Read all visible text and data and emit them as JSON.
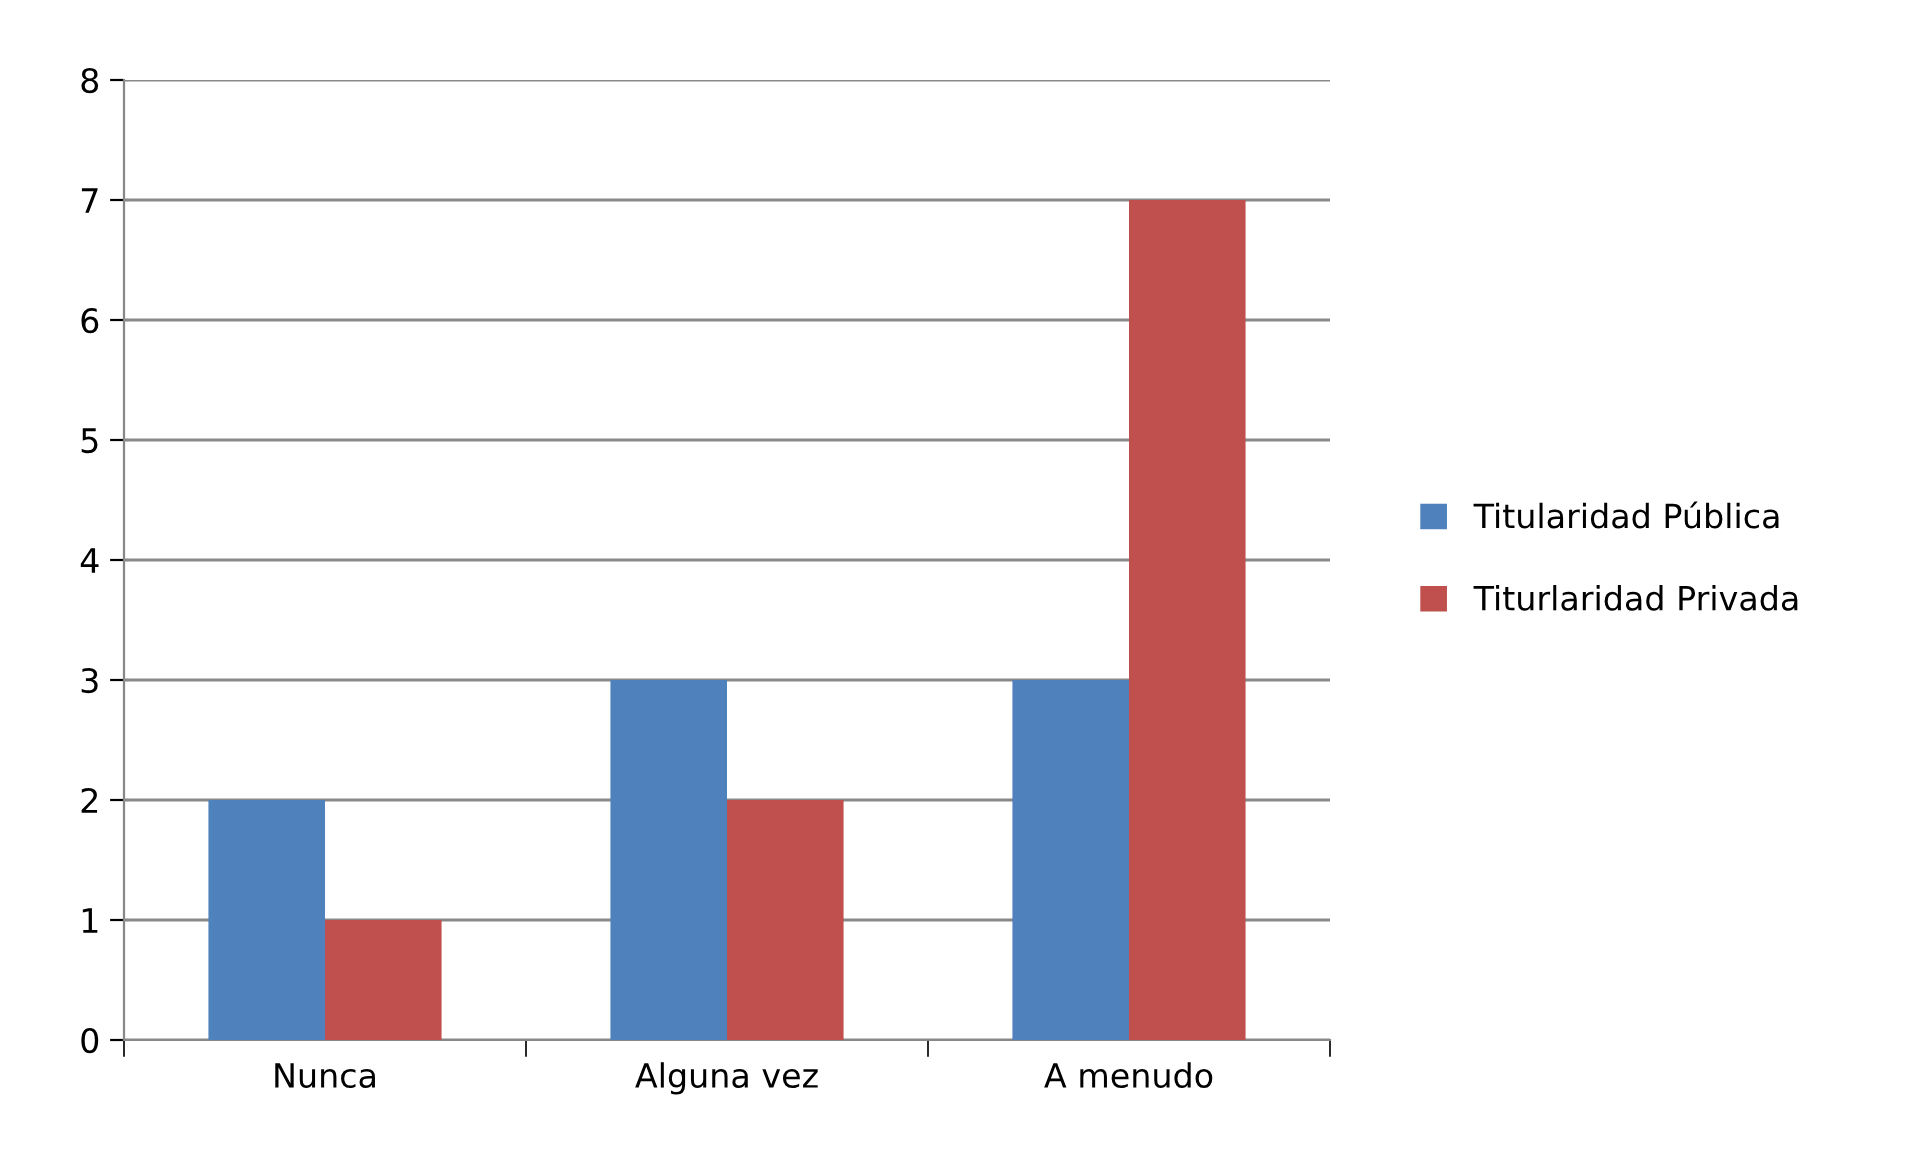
{
  "chart_data": {
    "type": "bar",
    "categories": [
      "Nunca",
      "Alguna vez",
      "A menudo"
    ],
    "series": [
      {
        "name": "Titularidad Pública",
        "color": "#4f81bd",
        "values": [
          2,
          3,
          3
        ]
      },
      {
        "name": "Titurlaridad Privada",
        "color": "#c0504d",
        "values": [
          1,
          2,
          7
        ]
      }
    ],
    "ylim": [
      0,
      8
    ],
    "yticks": [
      0,
      1,
      2,
      3,
      4,
      5,
      6,
      7,
      8
    ],
    "grid": "y",
    "legend": "right"
  }
}
